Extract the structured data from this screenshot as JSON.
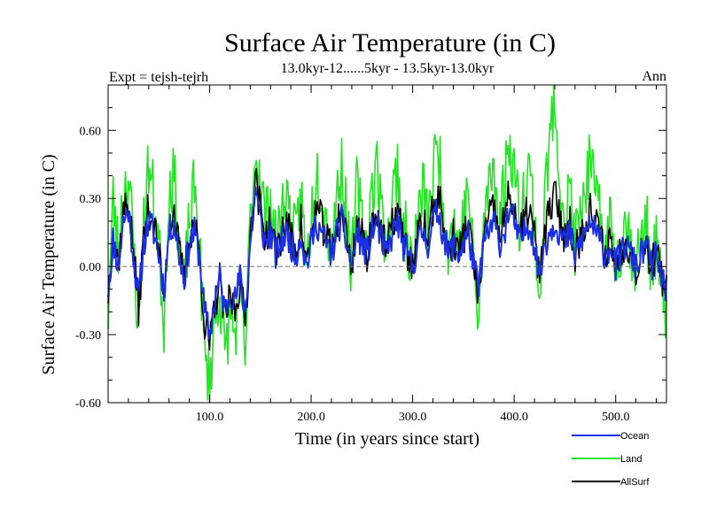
{
  "chart_data": {
    "type": "line",
    "title": "Surface Air Temperature (in C)",
    "subtitle": "13.0kyr-12......5kyr - 13.5kyr-13.0kyr",
    "left_annotation": "Expt = tejsh-tejrh",
    "right_annotation": "Ann",
    "xlabel": "Time (in years since start)",
    "ylabel": "Surface Air Temperature (in C)",
    "xlim": [
      0,
      550
    ],
    "ylim": [
      -0.6,
      0.8
    ],
    "xticks": [
      100,
      200,
      300,
      400,
      500
    ],
    "xtick_labels": [
      "100.0",
      "200.0",
      "300.0",
      "400.0",
      "500.0"
    ],
    "yticks": [
      -0.6,
      -0.3,
      0.0,
      0.3,
      0.6
    ],
    "ytick_labels": [
      "-0.60",
      "-0.30",
      "0.00",
      "0.30",
      "0.60"
    ],
    "zero_line": 0.0,
    "grid": false,
    "legend_position": "bottom-right outside",
    "series": [
      {
        "name": "Ocean",
        "color": "#1a2ee6"
      },
      {
        "name": "Land",
        "color": "#22e622"
      },
      {
        "name": "AllSurf",
        "color": "#000000"
      }
    ],
    "anchors": {
      "Ocean": [
        [
          0,
          -0.1
        ],
        [
          5,
          0.12
        ],
        [
          10,
          0.0
        ],
        [
          15,
          0.2
        ],
        [
          20,
          0.25
        ],
        [
          25,
          0.05
        ],
        [
          30,
          -0.15
        ],
        [
          35,
          0.1
        ],
        [
          40,
          0.2
        ],
        [
          45,
          0.15
        ],
        [
          50,
          0.05
        ],
        [
          55,
          -0.1
        ],
        [
          60,
          0.15
        ],
        [
          65,
          0.2
        ],
        [
          70,
          0.05
        ],
        [
          75,
          -0.05
        ],
        [
          80,
          0.1
        ],
        [
          85,
          0.15
        ],
        [
          90,
          0.05
        ],
        [
          95,
          -0.2
        ],
        [
          100,
          -0.3
        ],
        [
          105,
          -0.15
        ],
        [
          110,
          -0.05
        ],
        [
          115,
          -0.2
        ],
        [
          120,
          -0.1
        ],
        [
          125,
          -0.15
        ],
        [
          130,
          -0.05
        ],
        [
          135,
          -0.2
        ],
        [
          140,
          0.1
        ],
        [
          145,
          0.35
        ],
        [
          150,
          0.2
        ],
        [
          155,
          0.1
        ],
        [
          160,
          0.15
        ],
        [
          165,
          0.05
        ],
        [
          170,
          0.1
        ],
        [
          175,
          0.15
        ],
        [
          180,
          0.1
        ],
        [
          185,
          0.05
        ],
        [
          190,
          0.15
        ],
        [
          195,
          0.0
        ],
        [
          200,
          0.1
        ],
        [
          205,
          0.2
        ],
        [
          210,
          0.15
        ],
        [
          215,
          0.1
        ],
        [
          220,
          0.05
        ],
        [
          225,
          0.15
        ],
        [
          230,
          0.2
        ],
        [
          235,
          0.1
        ],
        [
          240,
          0.0
        ],
        [
          245,
          0.15
        ],
        [
          250,
          0.1
        ],
        [
          255,
          0.05
        ],
        [
          260,
          0.15
        ],
        [
          265,
          0.2
        ],
        [
          270,
          0.1
        ],
        [
          275,
          0.05
        ],
        [
          280,
          0.15
        ],
        [
          285,
          0.2
        ],
        [
          290,
          0.1
        ],
        [
          295,
          0.05
        ],
        [
          300,
          0.0
        ],
        [
          305,
          0.1
        ],
        [
          310,
          0.15
        ],
        [
          315,
          0.1
        ],
        [
          320,
          0.2
        ],
        [
          325,
          0.25
        ],
        [
          330,
          0.15
        ],
        [
          335,
          0.05
        ],
        [
          340,
          0.1
        ],
        [
          345,
          0.05
        ],
        [
          350,
          0.1
        ],
        [
          355,
          0.15
        ],
        [
          360,
          0.0
        ],
        [
          365,
          -0.1
        ],
        [
          370,
          0.1
        ],
        [
          375,
          0.15
        ],
        [
          380,
          0.2
        ],
        [
          385,
          0.1
        ],
        [
          390,
          0.15
        ],
        [
          395,
          0.25
        ],
        [
          400,
          0.2
        ],
        [
          405,
          0.1
        ],
        [
          410,
          0.15
        ],
        [
          415,
          0.2
        ],
        [
          420,
          0.1
        ],
        [
          425,
          -0.05
        ],
        [
          430,
          0.1
        ],
        [
          435,
          0.15
        ],
        [
          440,
          0.2
        ],
        [
          445,
          0.15
        ],
        [
          450,
          0.1
        ],
        [
          455,
          0.15
        ],
        [
          460,
          0.05
        ],
        [
          465,
          0.1
        ],
        [
          470,
          0.15
        ],
        [
          475,
          0.2
        ],
        [
          480,
          0.15
        ],
        [
          485,
          0.1
        ],
        [
          490,
          0.05
        ],
        [
          495,
          0.1
        ],
        [
          500,
          0.0
        ],
        [
          505,
          0.05
        ],
        [
          510,
          0.1
        ],
        [
          515,
          0.05
        ],
        [
          520,
          0.0
        ],
        [
          525,
          0.05
        ],
        [
          530,
          0.1
        ],
        [
          535,
          0.0
        ],
        [
          540,
          0.05
        ],
        [
          545,
          -0.05
        ],
        [
          550,
          -0.1
        ]
      ],
      "Land": [
        [
          0,
          -0.2
        ],
        [
          5,
          0.3
        ],
        [
          10,
          0.05
        ],
        [
          15,
          0.35
        ],
        [
          20,
          0.4
        ],
        [
          25,
          0.1
        ],
        [
          30,
          -0.3
        ],
        [
          35,
          0.2
        ],
        [
          40,
          0.45
        ],
        [
          45,
          0.3
        ],
        [
          50,
          0.1
        ],
        [
          55,
          -0.25
        ],
        [
          60,
          0.35
        ],
        [
          65,
          0.4
        ],
        [
          70,
          0.1
        ],
        [
          75,
          -0.1
        ],
        [
          80,
          0.2
        ],
        [
          85,
          0.35
        ],
        [
          90,
          0.1
        ],
        [
          95,
          -0.4
        ],
        [
          100,
          -0.5
        ],
        [
          105,
          -0.25
        ],
        [
          110,
          -0.1
        ],
        [
          115,
          -0.4
        ],
        [
          120,
          -0.2
        ],
        [
          125,
          -0.3
        ],
        [
          130,
          -0.1
        ],
        [
          135,
          -0.4
        ],
        [
          140,
          0.2
        ],
        [
          145,
          0.5
        ],
        [
          150,
          0.4
        ],
        [
          155,
          0.2
        ],
        [
          160,
          0.3
        ],
        [
          165,
          0.1
        ],
        [
          170,
          0.2
        ],
        [
          175,
          0.35
        ],
        [
          180,
          0.2
        ],
        [
          185,
          0.1
        ],
        [
          190,
          0.35
        ],
        [
          195,
          0.0
        ],
        [
          200,
          0.2
        ],
        [
          205,
          0.45
        ],
        [
          210,
          0.35
        ],
        [
          215,
          0.2
        ],
        [
          220,
          0.1
        ],
        [
          225,
          0.3
        ],
        [
          230,
          0.45
        ],
        [
          235,
          0.2
        ],
        [
          240,
          0.0
        ],
        [
          245,
          0.35
        ],
        [
          250,
          0.2
        ],
        [
          255,
          0.1
        ],
        [
          260,
          0.35
        ],
        [
          265,
          0.45
        ],
        [
          270,
          0.2
        ],
        [
          275,
          0.1
        ],
        [
          280,
          0.3
        ],
        [
          285,
          0.45
        ],
        [
          290,
          0.2
        ],
        [
          295,
          0.1
        ],
        [
          300,
          0.0
        ],
        [
          305,
          0.2
        ],
        [
          310,
          0.35
        ],
        [
          315,
          0.2
        ],
        [
          320,
          0.4
        ],
        [
          325,
          0.55
        ],
        [
          330,
          0.3
        ],
        [
          335,
          0.1
        ],
        [
          340,
          0.2
        ],
        [
          345,
          0.1
        ],
        [
          350,
          0.2
        ],
        [
          355,
          0.35
        ],
        [
          360,
          0.0
        ],
        [
          365,
          -0.25
        ],
        [
          370,
          0.2
        ],
        [
          375,
          0.35
        ],
        [
          380,
          0.45
        ],
        [
          385,
          0.2
        ],
        [
          390,
          0.35
        ],
        [
          395,
          0.55
        ],
        [
          400,
          0.45
        ],
        [
          405,
          0.2
        ],
        [
          410,
          0.35
        ],
        [
          415,
          0.45
        ],
        [
          420,
          0.2
        ],
        [
          425,
          -0.15
        ],
        [
          430,
          0.3
        ],
        [
          435,
          0.55
        ],
        [
          440,
          0.75
        ],
        [
          445,
          0.4
        ],
        [
          450,
          0.2
        ],
        [
          455,
          0.35
        ],
        [
          460,
          0.1
        ],
        [
          465,
          0.2
        ],
        [
          470,
          0.35
        ],
        [
          475,
          0.45
        ],
        [
          480,
          0.3
        ],
        [
          485,
          0.2
        ],
        [
          490,
          0.1
        ],
        [
          495,
          0.2
        ],
        [
          500,
          0.0
        ],
        [
          505,
          0.1
        ],
        [
          510,
          0.2
        ],
        [
          515,
          0.1
        ],
        [
          520,
          0.0
        ],
        [
          525,
          0.1
        ],
        [
          530,
          0.2
        ],
        [
          535,
          0.0
        ],
        [
          540,
          0.1
        ],
        [
          545,
          -0.1
        ],
        [
          550,
          -0.2
        ]
      ],
      "AllSurf": [
        [
          0,
          -0.12
        ],
        [
          5,
          0.16
        ],
        [
          10,
          0.01
        ],
        [
          15,
          0.24
        ],
        [
          20,
          0.29
        ],
        [
          25,
          0.06
        ],
        [
          30,
          -0.19
        ],
        [
          35,
          0.13
        ],
        [
          40,
          0.26
        ],
        [
          45,
          0.19
        ],
        [
          50,
          0.06
        ],
        [
          55,
          -0.14
        ],
        [
          60,
          0.2
        ],
        [
          65,
          0.25
        ],
        [
          70,
          0.06
        ],
        [
          75,
          -0.06
        ],
        [
          80,
          0.13
        ],
        [
          85,
          0.2
        ],
        [
          90,
          0.06
        ],
        [
          95,
          -0.25
        ],
        [
          100,
          -0.35
        ],
        [
          105,
          -0.18
        ],
        [
          110,
          -0.06
        ],
        [
          115,
          -0.25
        ],
        [
          120,
          -0.13
        ],
        [
          125,
          -0.19
        ],
        [
          130,
          -0.06
        ],
        [
          135,
          -0.25
        ],
        [
          140,
          0.13
        ],
        [
          145,
          0.39
        ],
        [
          150,
          0.25
        ],
        [
          155,
          0.13
        ],
        [
          160,
          0.19
        ],
        [
          165,
          0.06
        ],
        [
          170,
          0.13
        ],
        [
          175,
          0.2
        ],
        [
          180,
          0.13
        ],
        [
          185,
          0.06
        ],
        [
          190,
          0.2
        ],
        [
          195,
          0.0
        ],
        [
          200,
          0.13
        ],
        [
          205,
          0.26
        ],
        [
          210,
          0.2
        ],
        [
          215,
          0.13
        ],
        [
          220,
          0.06
        ],
        [
          225,
          0.19
        ],
        [
          230,
          0.26
        ],
        [
          235,
          0.13
        ],
        [
          240,
          0.0
        ],
        [
          245,
          0.2
        ],
        [
          250,
          0.13
        ],
        [
          255,
          0.06
        ],
        [
          260,
          0.2
        ],
        [
          265,
          0.26
        ],
        [
          270,
          0.13
        ],
        [
          275,
          0.06
        ],
        [
          280,
          0.19
        ],
        [
          285,
          0.26
        ],
        [
          290,
          0.13
        ],
        [
          295,
          0.06
        ],
        [
          300,
          0.0
        ],
        [
          305,
          0.13
        ],
        [
          310,
          0.2
        ],
        [
          315,
          0.13
        ],
        [
          320,
          0.25
        ],
        [
          325,
          0.32
        ],
        [
          330,
          0.19
        ],
        [
          335,
          0.06
        ],
        [
          340,
          0.13
        ],
        [
          345,
          0.06
        ],
        [
          350,
          0.13
        ],
        [
          355,
          0.2
        ],
        [
          360,
          0.0
        ],
        [
          365,
          -0.14
        ],
        [
          370,
          0.13
        ],
        [
          375,
          0.2
        ],
        [
          380,
          0.26
        ],
        [
          385,
          0.13
        ],
        [
          390,
          0.2
        ],
        [
          395,
          0.32
        ],
        [
          400,
          0.26
        ],
        [
          405,
          0.13
        ],
        [
          410,
          0.2
        ],
        [
          415,
          0.26
        ],
        [
          420,
          0.13
        ],
        [
          425,
          -0.07
        ],
        [
          430,
          0.16
        ],
        [
          435,
          0.24
        ],
        [
          440,
          0.32
        ],
        [
          445,
          0.22
        ],
        [
          450,
          0.13
        ],
        [
          455,
          0.2
        ],
        [
          460,
          0.06
        ],
        [
          465,
          0.13
        ],
        [
          470,
          0.2
        ],
        [
          475,
          0.26
        ],
        [
          480,
          0.19
        ],
        [
          485,
          0.13
        ],
        [
          490,
          0.06
        ],
        [
          495,
          0.13
        ],
        [
          500,
          0.0
        ],
        [
          505,
          0.06
        ],
        [
          510,
          0.13
        ],
        [
          515,
          0.06
        ],
        [
          520,
          0.0
        ],
        [
          525,
          0.06
        ],
        [
          530,
          0.13
        ],
        [
          535,
          0.0
        ],
        [
          540,
          0.06
        ],
        [
          545,
          -0.06
        ],
        [
          550,
          -0.12
        ]
      ]
    }
  }
}
